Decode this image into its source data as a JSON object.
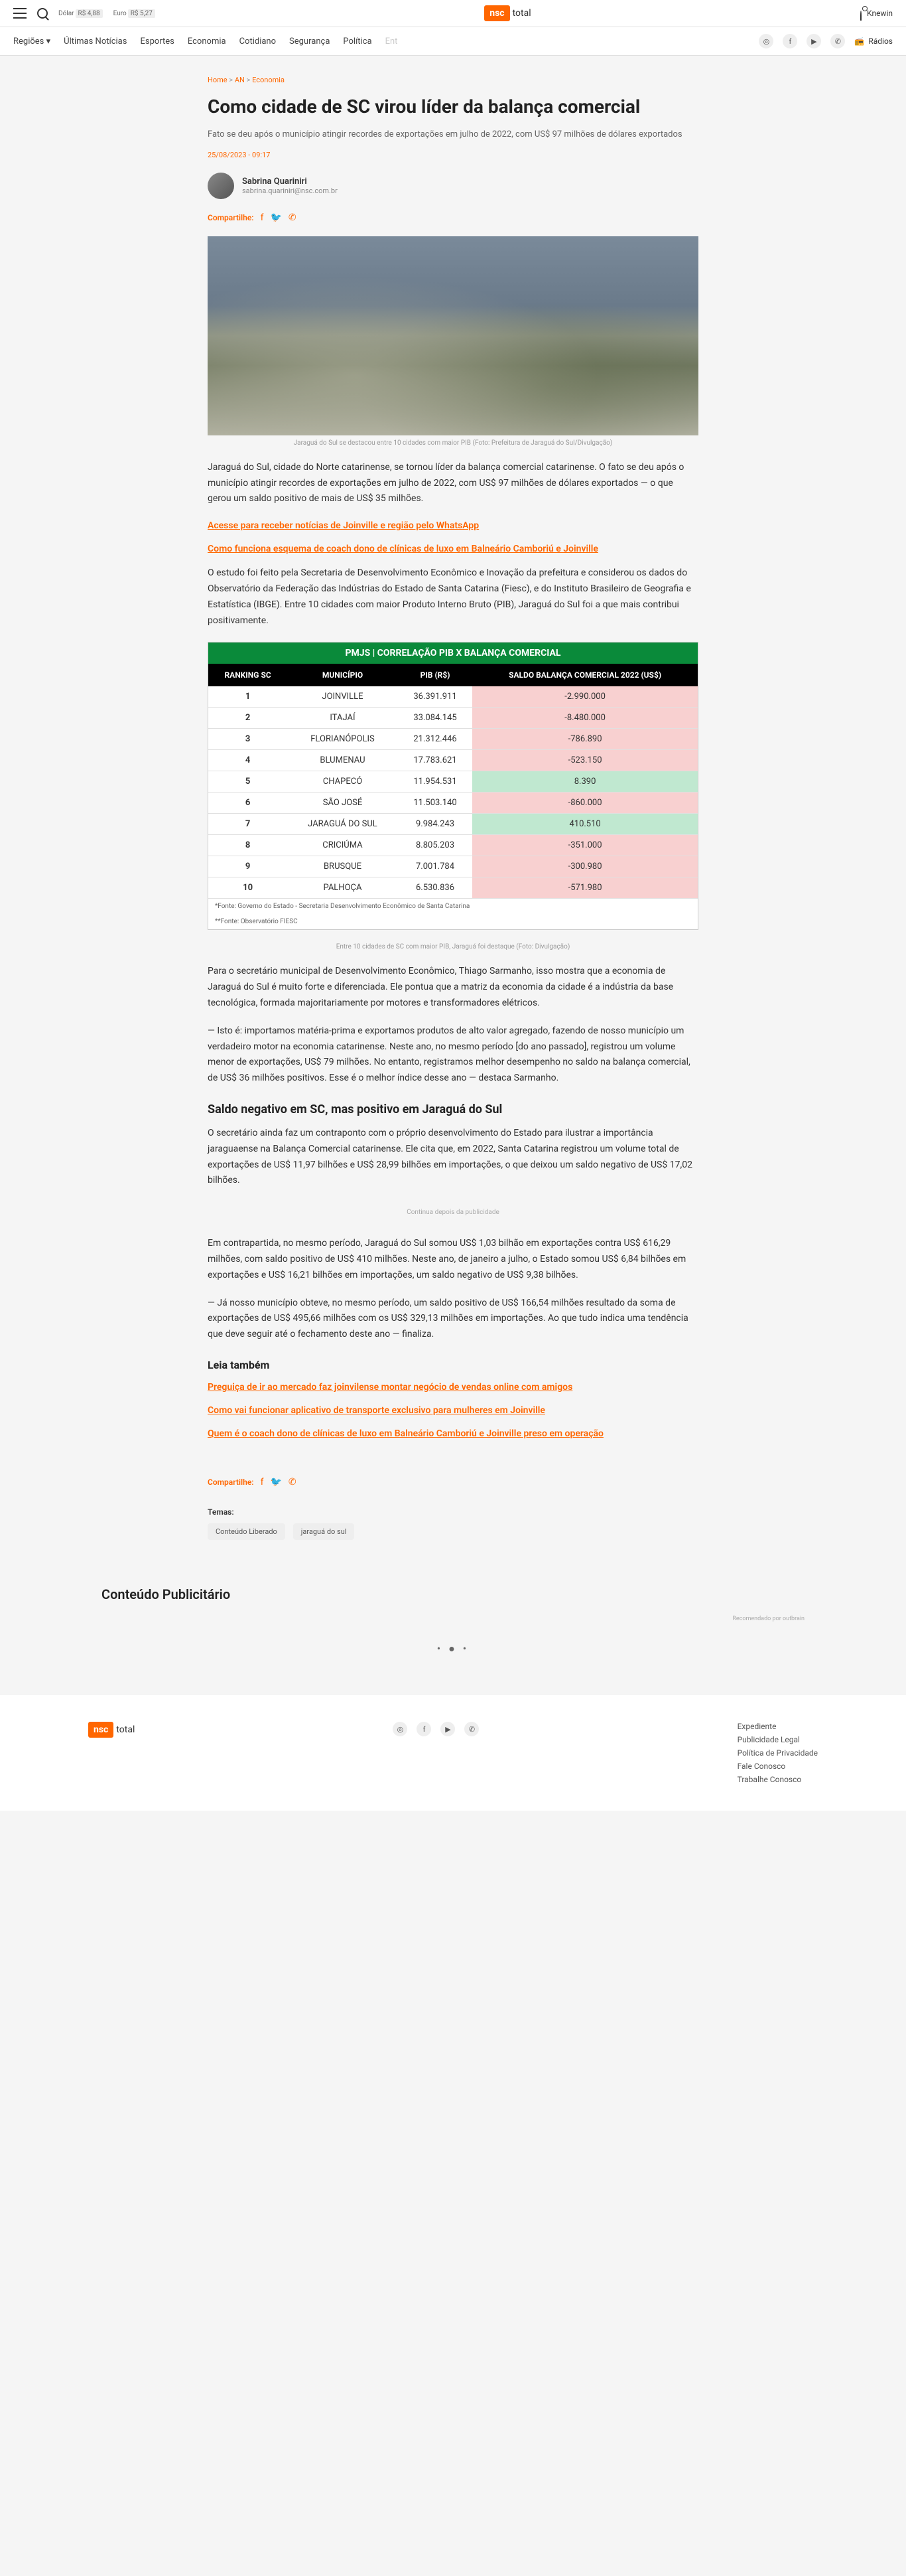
{
  "topbar": {
    "currency1_label": "Dólar",
    "currency1_val": "R$ 4,88",
    "currency2_label": "Euro",
    "currency2_val": "R$ 5,27",
    "logo_box": "nsc",
    "logo_text": "total",
    "user": "Knewin"
  },
  "nav": {
    "items": [
      "Regiões ▾",
      "Últimas Notícias",
      "Esportes",
      "Economia",
      "Cotidiano",
      "Segurança",
      "Política",
      "Ent"
    ],
    "radios": "Rádios"
  },
  "breadcrumb": {
    "home": "Home",
    "sep1": ">",
    "cat1": "AN",
    "sep2": ">",
    "cat2": "Economia"
  },
  "article": {
    "title": "Como cidade de SC virou líder da balança comercial",
    "subtitle": "Fato se deu após o município atingir recordes de exportações em julho de 2022, com US$ 97 milhões de dólares exportados",
    "date": "25/08/2023 - 09:17",
    "author_name": "Sabrina Quariniri",
    "author_email": "sabrina.quariniri@nsc.com.br",
    "share_label": "Compartilhe:",
    "hero_caption": "Jaraguá do Sul se destacou entre 10 cidades com maior PIB (Foto: Prefeitura de Jaraguá do Sul/Divulgação)",
    "p1": "Jaraguá do Sul, cidade do Norte catarinense, se tornou líder da balança comercial catarinense. O fato se deu após o município atingir recordes de exportações em julho de 2022, com US$ 97 milhões de dólares exportados — o que gerou um saldo positivo de mais de US$ 35 milhões.",
    "link1": "Acesse para receber notícias de Joinville e região pelo WhatsApp",
    "link2": "Como funciona esquema de coach dono de clínicas de luxo em Balneário Camboriú e Joinville",
    "p2": "O estudo foi feito pela Secretaria de Desenvolvimento Econômico e Inovação da prefeitura e considerou os dados do Observatório da Federação das Indústrias do Estado de Santa Catarina (Fiesc), e do Instituto Brasileiro de Geografia e Estatística (IBGE). Entre 10 cidades com maior Produto Interno Bruto (PIB), Jaraguá do Sul foi a que mais contribui positivamente.",
    "table_caption": "Entre 10 cidades de SC com maior PIB, Jaraguá foi destaque (Foto: Divulgação)",
    "p3": "Para o secretário municipal de Desenvolvimento Econômico, Thiago Sarmanho, isso mostra que a economia de Jaraguá do Sul é muito forte e diferenciada. Ele pontua que a matriz da economia da cidade é a indústria da base tecnológica, formada majoritariamente por motores e transformadores elétricos.",
    "p4": "— Isto é: importamos matéria-prima e exportamos produtos de alto valor agregado, fazendo de nosso município um verdadeiro motor na economia catarinense. Neste ano, no mesmo período [do ano passado], registrou um volume menor de exportações, US$ 79 milhões. No entanto, registramos melhor desempenho no saldo na balança comercial, de US$ 36 milhões positivos. Esse é o melhor índice desse ano — destaca Sarmanho.",
    "h2_1": "Saldo negativo em SC, mas positivo em Jaraguá do Sul",
    "p5": "O secretário ainda faz um contraponto com o próprio desenvolvimento do Estado para ilustrar a importância jaraguaense na Balança Comercial catarinense. Ele cita que, em 2022, Santa Catarina registrou um volume total de exportações de US$ 11,97 bilhões e US$ 28,99 bilhões em importações, o que deixou um saldo negativo de US$ 17,02 bilhões.",
    "ad_label": "Continua depois da publicidade",
    "p6": "Em contrapartida, no mesmo período, Jaraguá do Sul somou US$ 1,03 bilhão em exportações contra US$ 616,29 milhões, com saldo positivo de US$ 410 milhões. Neste ano, de janeiro a julho, o Estado somou US$ 6,84 bilhões em exportações e US$ 16,21 bilhões em importações, um saldo negativo de US$ 9,38 bilhões.",
    "p7": "— Já nosso município obteve, no mesmo período, um saldo positivo de US$ 166,54 milhões resultado da soma de exportações de US$ 495,66 milhões com os US$ 329,13 milhões em importações. Ao que tudo indica uma tendência que deve seguir até o fechamento deste ano — finaliza.",
    "related_heading": "Leia também",
    "rel1": "Preguiça de ir ao mercado faz joinvilense montar negócio de vendas online com amigos",
    "rel2": "Como vai funcionar aplicativo de transporte exclusivo para mulheres em Joinville",
    "rel3": "Quem é o coach dono de clínicas de luxo em Balneário Camboriú e Joinville preso em operação",
    "tags_label": "Temas:",
    "tag1": "Conteúdo Liberado",
    "tag2": "jaraguá do sul"
  },
  "table": {
    "title": "PMJS | CORRELAÇÃO PIB X BALANÇA COMERCIAL",
    "headers": [
      "RANKING SC",
      "MUNICÍPIO",
      "PIB (R$)",
      "SALDO BALANÇA COMERCIAL 2022 (US$)"
    ],
    "rows": [
      {
        "rank": "1",
        "city": "JOINVILLE",
        "pib": "36.391.911",
        "saldo": "-2.990.000",
        "neg": true
      },
      {
        "rank": "2",
        "city": "ITAJAÍ",
        "pib": "33.084.145",
        "saldo": "-8.480.000",
        "neg": true
      },
      {
        "rank": "3",
        "city": "FLORIANÓPOLIS",
        "pib": "21.312.446",
        "saldo": "-786.890",
        "neg": true
      },
      {
        "rank": "4",
        "city": "BLUMENAU",
        "pib": "17.783.621",
        "saldo": "-523.150",
        "neg": true
      },
      {
        "rank": "5",
        "city": "CHAPECÓ",
        "pib": "11.954.531",
        "saldo": "8.390",
        "neg": false
      },
      {
        "rank": "6",
        "city": "SÃO JOSÉ",
        "pib": "11.503.140",
        "saldo": "-860.000",
        "neg": true
      },
      {
        "rank": "7",
        "city": "JARAGUÁ DO SUL",
        "pib": "9.984.243",
        "saldo": "410.510",
        "neg": false
      },
      {
        "rank": "8",
        "city": "CRICIÚMA",
        "pib": "8.805.203",
        "saldo": "-351.000",
        "neg": true
      },
      {
        "rank": "9",
        "city": "BRUSQUE",
        "pib": "7.001.784",
        "saldo": "-300.980",
        "neg": true
      },
      {
        "rank": "10",
        "city": "PALHOÇA",
        "pib": "6.530.836",
        "saldo": "-571.980",
        "neg": true
      }
    ],
    "footer1": "*Fonte: Governo do Estado - Secretaria Desenvolvimento Econômico de Santa Catarina",
    "footer2": "**Fonte: Observatório FIESC"
  },
  "sponsored": {
    "heading": "Conteúdo Publicitário",
    "outbrain": "Recomendado por outbrain"
  },
  "footer": {
    "links": [
      "Expediente",
      "Publicidade Legal",
      "Política de Privacidade",
      "Fale Conosco",
      "Trabalhe Conosco"
    ]
  }
}
